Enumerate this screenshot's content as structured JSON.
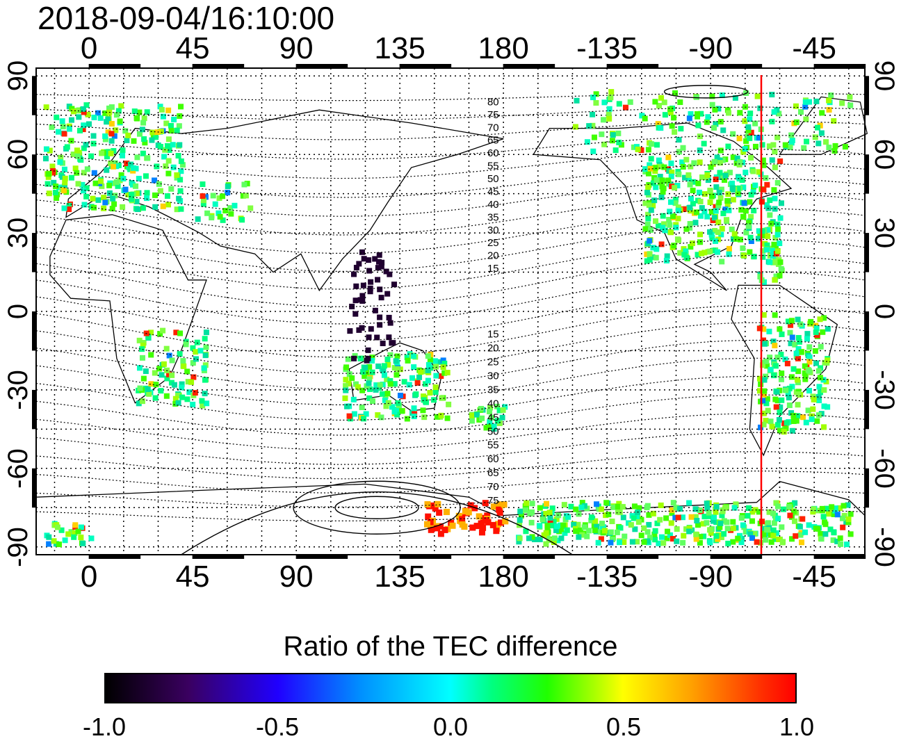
{
  "title": "2018-09-04/16:10:00",
  "map": {
    "x_ticks": [
      "0",
      "45",
      "90",
      "135",
      "180",
      "-135",
      "-90",
      "-45"
    ],
    "x_tick_lons": [
      0,
      45,
      90,
      135,
      180,
      225,
      270,
      315
    ],
    "y_ticks": [
      "90",
      "60",
      "30",
      "0",
      "-30",
      "-60",
      "-90"
    ],
    "y_tick_lats": [
      90,
      60,
      30,
      0,
      -30,
      -60,
      -90
    ],
    "y_ticks_right": [
      "90",
      "60",
      "30",
      "0",
      "-30",
      "-60",
      "-90"
    ],
    "lon_range": [
      -23,
      337
    ],
    "lat_range": [
      -93,
      93
    ],
    "terminator_lon_label": "-68",
    "contour_labels_north": [
      "80",
      "75",
      "70",
      "65",
      "60",
      "55",
      "50",
      "45",
      "40",
      "35",
      "30",
      "25",
      "20",
      "15"
    ],
    "contour_labels_south": [
      "15",
      "20",
      "25",
      "30",
      "35",
      "40",
      "45",
      "50",
      "55",
      "60",
      "65",
      "70",
      "75"
    ],
    "line_color_terminator": "#ff0000"
  },
  "colorbar": {
    "title": "Ratio of the TEC difference",
    "ticks": [
      "-1.0",
      "-0.5",
      "0.0",
      "0.5",
      "1.0"
    ],
    "range": [
      -1.0,
      1.0
    ]
  }
}
